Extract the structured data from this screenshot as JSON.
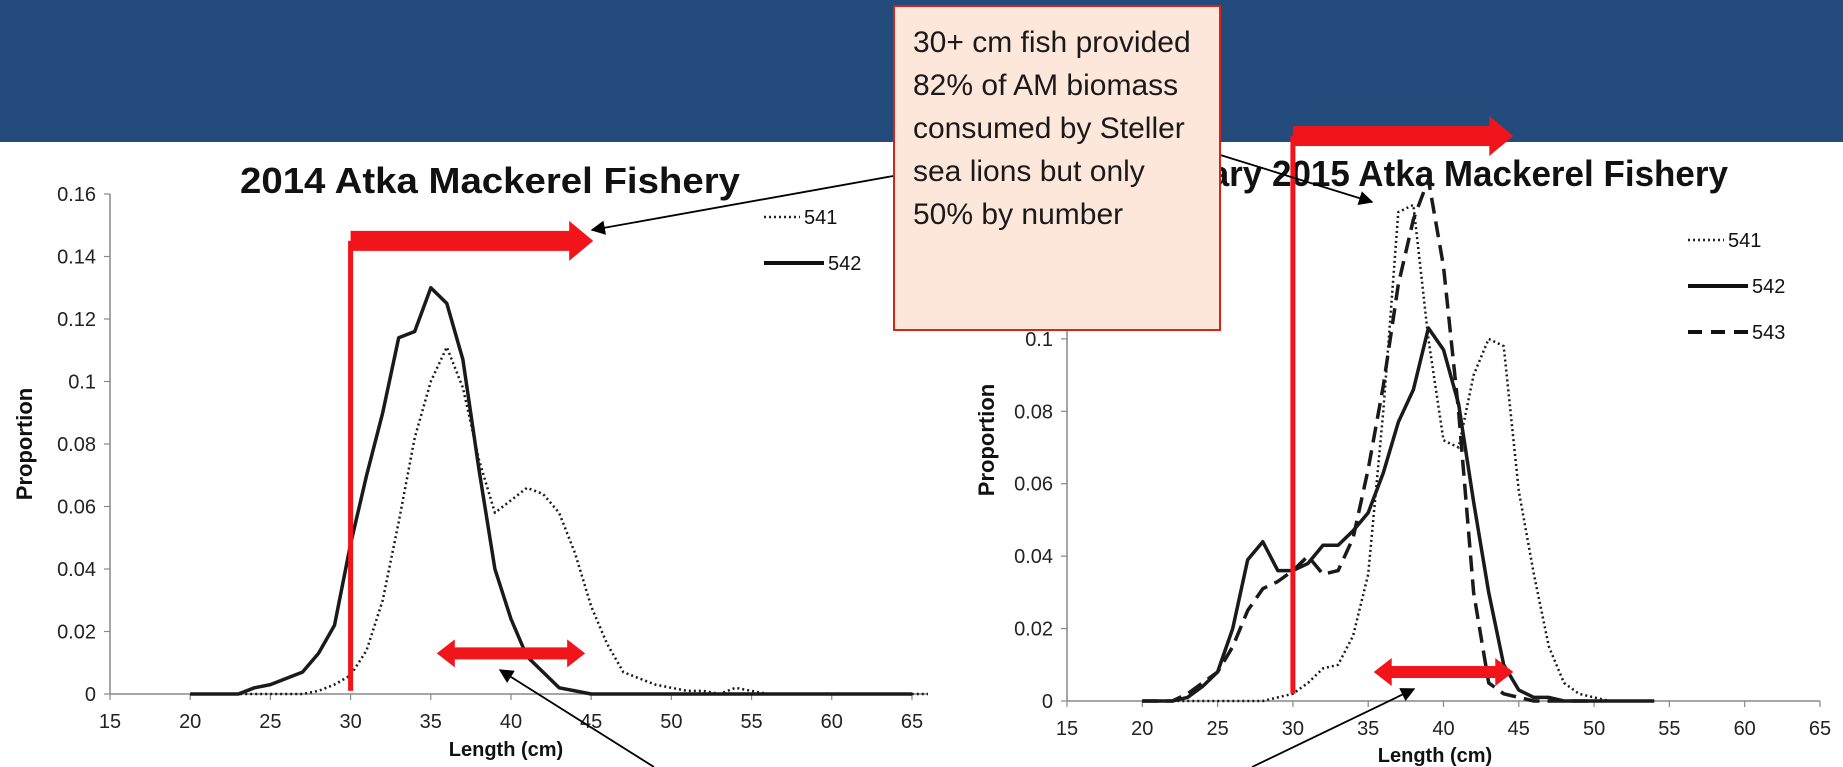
{
  "callout": {
    "text": "30+ cm fish provided 82% of AM biomass consumed by Steller sea lions but only 50% by number"
  },
  "colors": {
    "banner": "#234b7b",
    "highlight": "#f2141b",
    "callout_bg": "#fde6da",
    "callout_border": "#d9231a",
    "series": "#1a1a1a"
  },
  "chart_data": [
    {
      "type": "line",
      "title": "2014 Atka Mackerel Fishery",
      "xlabel": "Length (cm)",
      "ylabel": "Proportion",
      "xlim": [
        15,
        66
      ],
      "ylim": [
        0,
        0.16
      ],
      "x_ticks": [
        "15",
        "20",
        "25",
        "30",
        "35",
        "40",
        "45",
        "50",
        "55",
        "60",
        "65"
      ],
      "y_ticks": [
        "0",
        "0.02",
        "0.04",
        "0.06",
        "0.08",
        "0.1",
        "0.12",
        "0.14",
        "0.16"
      ],
      "grid": false,
      "legend_position": "top-right",
      "series": [
        {
          "name": "541",
          "style": "dotted",
          "x": [
            20,
            21,
            22,
            23,
            24,
            25,
            26,
            27,
            28,
            29,
            30,
            31,
            32,
            33,
            34,
            35,
            36,
            37,
            38,
            39,
            40,
            41,
            42,
            43,
            44,
            45,
            46,
            47,
            48,
            49,
            50,
            51,
            52,
            53,
            54,
            55,
            56,
            57,
            58,
            59,
            60,
            61,
            62,
            63,
            64,
            65,
            66
          ],
          "y": [
            0,
            0,
            0,
            0,
            0,
            0,
            0,
            0,
            0.001,
            0.003,
            0.006,
            0.014,
            0.03,
            0.055,
            0.082,
            0.1,
            0.111,
            0.098,
            0.075,
            0.058,
            0.062,
            0.066,
            0.064,
            0.058,
            0.045,
            0.028,
            0.016,
            0.007,
            0.005,
            0.003,
            0.002,
            0.001,
            0.001,
            0,
            0.002,
            0.001,
            0,
            0,
            0,
            0,
            0,
            0,
            0,
            0,
            0,
            0,
            0
          ]
        },
        {
          "name": "542",
          "style": "solid",
          "x": [
            20,
            21,
            22,
            23,
            24,
            25,
            26,
            27,
            28,
            29,
            30,
            31,
            32,
            33,
            34,
            35,
            36,
            37,
            38,
            39,
            40,
            41,
            42,
            43,
            44,
            45,
            46,
            47,
            48,
            49,
            50,
            51,
            52,
            53,
            54,
            55,
            56,
            57,
            58,
            59,
            60,
            61,
            62,
            63,
            64,
            65
          ],
          "y": [
            0,
            0,
            0,
            0,
            0.002,
            0.003,
            0.005,
            0.007,
            0.013,
            0.022,
            0.048,
            0.07,
            0.09,
            0.114,
            0.116,
            0.13,
            0.125,
            0.107,
            0.072,
            0.04,
            0.024,
            0.012,
            0.007,
            0.002,
            0.001,
            0,
            0,
            0,
            0,
            0,
            0,
            0,
            0,
            0,
            0,
            0,
            0,
            0,
            0,
            0,
            0,
            0,
            0,
            0,
            0,
            0
          ]
        }
      ],
      "annotations": [
        {
          "kind": "cutoff-bar",
          "x": 30,
          "y": [
            0.001,
            0.145
          ],
          "arrow_to_x": 45
        },
        {
          "kind": "double-arrow",
          "x": [
            35.5,
            44.5
          ],
          "y": 0.013
        }
      ]
    },
    {
      "type": "line",
      "title": "January 2015 Atka Mackerel Fishery",
      "xlabel": "Length (cm)",
      "ylabel": "Proportion",
      "xlim": [
        15,
        65
      ],
      "ylim": [
        0,
        0.14
      ],
      "x_ticks": [
        "15",
        "20",
        "25",
        "30",
        "35",
        "40",
        "45",
        "50",
        "55",
        "60",
        "65"
      ],
      "y_ticks": [
        "0",
        "0.02",
        "0.04",
        "0.06",
        "0.08",
        "0.1"
      ],
      "grid": false,
      "legend_position": "top-right",
      "series": [
        {
          "name": "541",
          "style": "dotted",
          "x": [
            20,
            21,
            22,
            23,
            24,
            25,
            26,
            27,
            28,
            29,
            30,
            31,
            32,
            33,
            34,
            35,
            36,
            37,
            38,
            39,
            40,
            41,
            42,
            43,
            44,
            45,
            46,
            47,
            48,
            49,
            50,
            51,
            52
          ],
          "y": [
            0,
            0,
            0,
            0,
            0,
            0,
            0,
            0,
            0,
            0.001,
            0.002,
            0.005,
            0.009,
            0.01,
            0.018,
            0.035,
            0.08,
            0.135,
            0.137,
            0.1,
            0.072,
            0.07,
            0.09,
            0.1,
            0.098,
            0.058,
            0.035,
            0.015,
            0.005,
            0.002,
            0.001,
            0,
            0
          ]
        },
        {
          "name": "542",
          "style": "solid",
          "x": [
            20,
            21,
            22,
            23,
            24,
            25,
            26,
            27,
            28,
            29,
            30,
            31,
            32,
            33,
            34,
            35,
            36,
            37,
            38,
            39,
            40,
            41,
            42,
            43,
            44,
            45,
            46,
            47,
            48,
            49,
            50,
            51,
            52,
            53,
            54
          ],
          "y": [
            0,
            0,
            0,
            0.001,
            0.004,
            0.008,
            0.02,
            0.039,
            0.044,
            0.036,
            0.036,
            0.038,
            0.043,
            0.043,
            0.047,
            0.052,
            0.063,
            0.077,
            0.086,
            0.103,
            0.097,
            0.082,
            0.055,
            0.03,
            0.01,
            0.003,
            0.001,
            0.001,
            0,
            0,
            0,
            0,
            0,
            0,
            0
          ]
        },
        {
          "name": "543",
          "style": "dashed",
          "x": [
            20,
            21,
            22,
            23,
            24,
            25,
            26,
            27,
            28,
            29,
            30,
            31,
            32,
            33,
            34,
            35,
            36,
            37,
            38,
            39,
            40,
            41,
            42,
            43,
            44,
            45,
            46,
            47,
            48,
            49,
            50
          ],
          "y": [
            0,
            0,
            0,
            0.002,
            0.005,
            0.008,
            0.015,
            0.025,
            0.031,
            0.033,
            0.036,
            0.04,
            0.035,
            0.036,
            0.045,
            0.064,
            0.087,
            0.115,
            0.133,
            0.144,
            0.12,
            0.08,
            0.03,
            0.005,
            0.002,
            0.001,
            0,
            0,
            0,
            0,
            0
          ]
        }
      ],
      "annotations": [
        {
          "kind": "cutoff-bar",
          "x": 30,
          "y": [
            0.002,
            0.156
          ],
          "arrow_to_x": 44.5
        },
        {
          "kind": "double-arrow",
          "x": [
            35.5,
            44.5
          ],
          "y": 0.008
        }
      ]
    }
  ]
}
